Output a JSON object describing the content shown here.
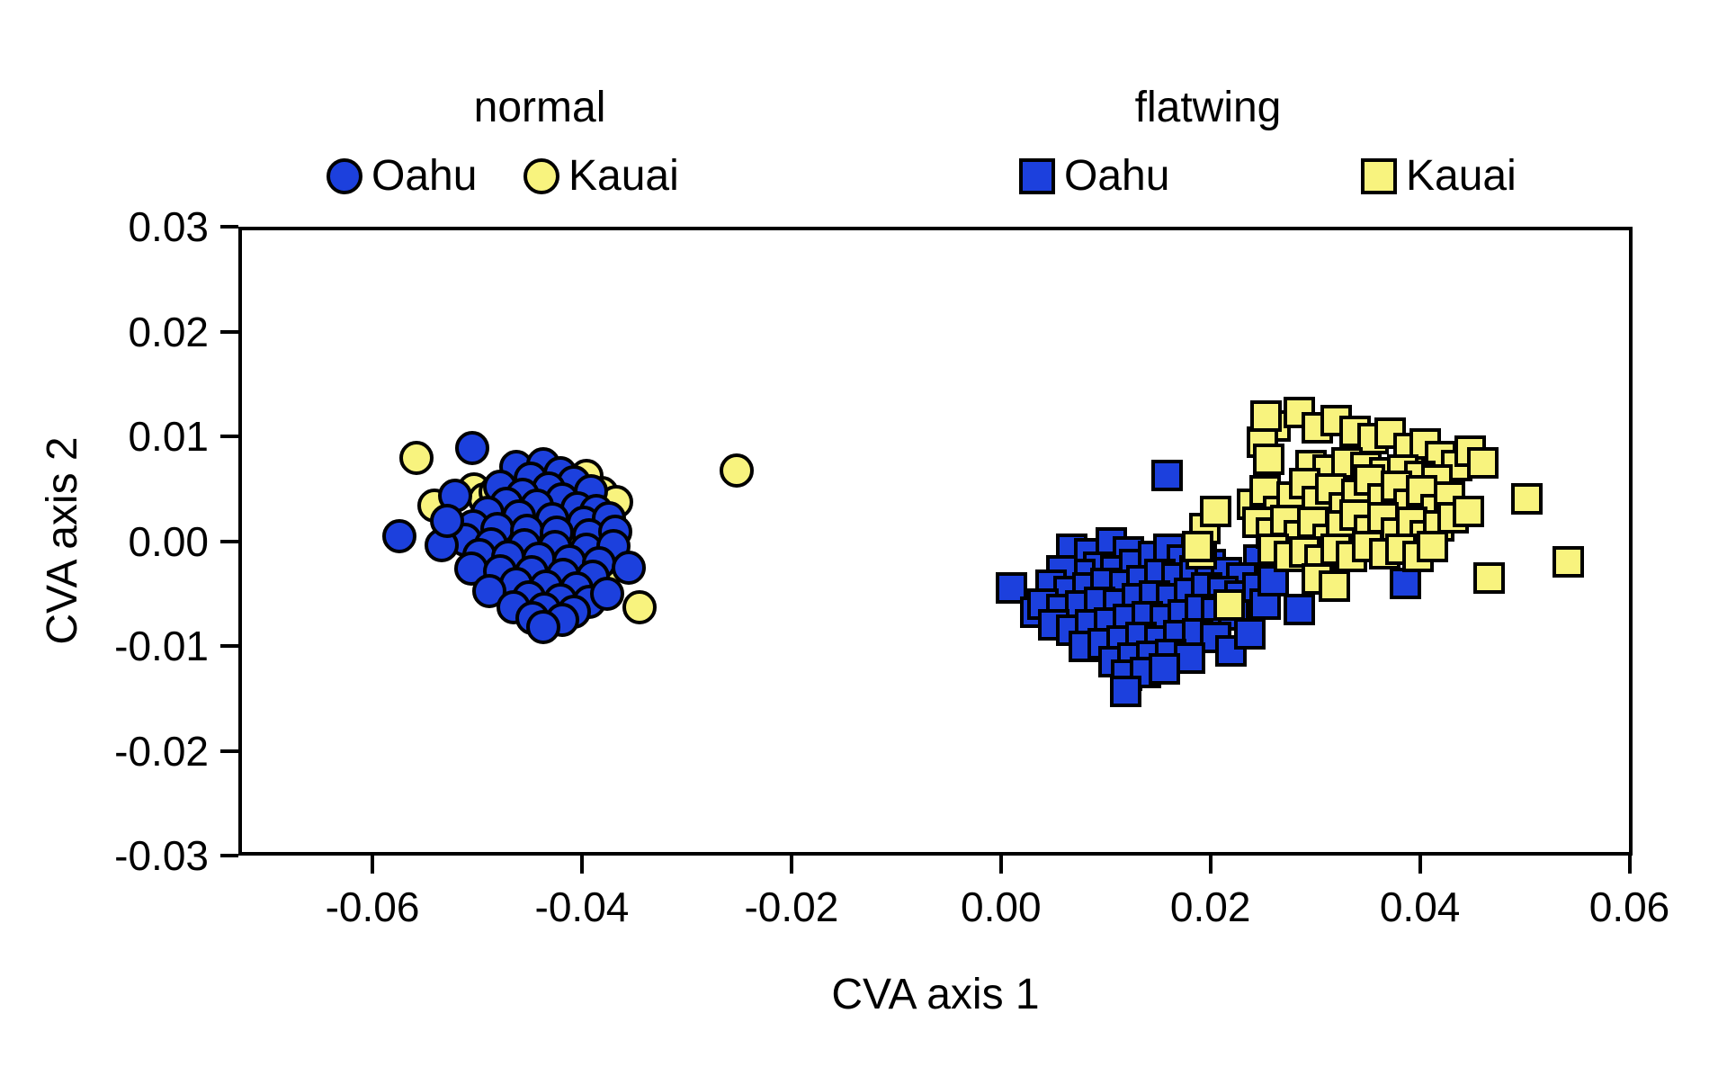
{
  "chart_data": {
    "type": "scatter",
    "title": "",
    "xlabel": "CVA axis 1",
    "ylabel": "CVA axis 2",
    "xlim": [
      -0.0728,
      0.0603
    ],
    "ylim": [
      -0.03,
      0.03
    ],
    "grid": false,
    "x_ticks": [
      -0.06,
      -0.04,
      -0.02,
      0.0,
      0.02,
      0.04,
      0.06
    ],
    "x_tick_labels": [
      "-0.06",
      "-0.04",
      "-0.02",
      "0.00",
      "0.02",
      "0.04",
      "0.06"
    ],
    "y_ticks": [
      0.03,
      0.02,
      0.01,
      0.0,
      -0.01,
      -0.02,
      -0.03
    ],
    "y_tick_labels": [
      "0.03",
      "0.02",
      "0.01",
      "0.00",
      "-0.01",
      "-0.02",
      "-0.03"
    ],
    "colors": {
      "oahu_blue": "#1c40dd",
      "kauai_yellow": "#f8f37e",
      "stroke": "#000000"
    },
    "legend": {
      "position": "top",
      "groups": [
        {
          "title": "normal",
          "marker": "circle",
          "items": [
            {
              "label": "Oahu",
              "color": "#1c40dd"
            },
            {
              "label": "Kauai",
              "color": "#f8f37e"
            }
          ]
        },
        {
          "title": "flatwing",
          "marker": "square",
          "items": [
            {
              "label": "Oahu",
              "color": "#1c40dd"
            },
            {
              "label": "Kauai",
              "color": "#f8f37e"
            }
          ]
        }
      ]
    },
    "series": [
      {
        "name": "normal Kauai",
        "marker": "circle",
        "color": "#f8f37e",
        "points": [
          [
            -0.0558,
            0.0079
          ],
          [
            -0.0541,
            0.0034
          ],
          [
            -0.0252,
            0.0067
          ],
          [
            -0.0345,
            -0.0063
          ],
          [
            -0.0503,
            0.0049
          ],
          [
            -0.0493,
            0.004
          ],
          [
            -0.0482,
            0.0047
          ],
          [
            -0.047,
            0.003
          ],
          [
            -0.0452,
            0.0052
          ],
          [
            -0.0435,
            0.0056
          ],
          [
            -0.0415,
            0.0059
          ],
          [
            -0.0396,
            0.0062
          ],
          [
            -0.0381,
            0.0046
          ],
          [
            -0.0367,
            0.0037
          ],
          [
            -0.0373,
            0.0012
          ],
          [
            -0.0409,
            0.0003
          ],
          [
            -0.0428,
            -0.0012
          ],
          [
            -0.0411,
            -0.0027
          ],
          [
            -0.0395,
            -0.0047
          ],
          [
            -0.0422,
            -0.0051
          ],
          [
            -0.0379,
            -0.0035
          ]
        ]
      },
      {
        "name": "normal Oahu",
        "marker": "circle",
        "color": "#1c40dd",
        "points": [
          [
            -0.0505,
            0.0089
          ],
          [
            -0.0463,
            0.0071
          ],
          [
            -0.0437,
            0.0073
          ],
          [
            -0.0421,
            0.0065
          ],
          [
            -0.0449,
            0.006
          ],
          [
            -0.0478,
            0.0052
          ],
          [
            -0.0408,
            0.0056
          ],
          [
            -0.0391,
            0.0048
          ],
          [
            -0.0432,
            0.005
          ],
          [
            -0.0457,
            0.0044
          ],
          [
            -0.0419,
            0.004
          ],
          [
            -0.0472,
            0.0036
          ],
          [
            -0.0443,
            0.0034
          ],
          [
            -0.0404,
            0.0031
          ],
          [
            -0.0386,
            0.0029
          ],
          [
            -0.049,
            0.0027
          ],
          [
            -0.046,
            0.0024
          ],
          [
            -0.0428,
            0.0021
          ],
          [
            -0.0398,
            0.0018
          ],
          [
            -0.0374,
            0.0022
          ],
          [
            -0.0504,
            0.0014
          ],
          [
            -0.0481,
            0.0012
          ],
          [
            -0.0452,
            0.001
          ],
          [
            -0.0424,
            0.0008
          ],
          [
            -0.0393,
            0.0006
          ],
          [
            -0.0368,
            0.0009
          ],
          [
            -0.0512,
            0.0001
          ],
          [
            -0.0487,
            -0.0003
          ],
          [
            -0.0455,
            -0.0004
          ],
          [
            -0.0426,
            -0.0006
          ],
          [
            -0.0396,
            -0.0008
          ],
          [
            -0.037,
            -0.0005
          ],
          [
            -0.0498,
            -0.0013
          ],
          [
            -0.047,
            -0.0015
          ],
          [
            -0.0441,
            -0.0017
          ],
          [
            -0.0412,
            -0.0019
          ],
          [
            -0.0384,
            -0.0021
          ],
          [
            -0.0355,
            -0.0025
          ],
          [
            -0.0506,
            -0.0026
          ],
          [
            -0.0478,
            -0.0029
          ],
          [
            -0.0448,
            -0.003
          ],
          [
            -0.0418,
            -0.0032
          ],
          [
            -0.039,
            -0.0034
          ],
          [
            -0.0463,
            -0.0041
          ],
          [
            -0.0434,
            -0.0043
          ],
          [
            -0.0405,
            -0.0045
          ],
          [
            -0.0488,
            -0.0048
          ],
          [
            -0.0451,
            -0.0054
          ],
          [
            -0.0421,
            -0.0056
          ],
          [
            -0.0393,
            -0.0058
          ],
          [
            -0.0376,
            -0.005
          ],
          [
            -0.0465,
            -0.0063
          ],
          [
            -0.0436,
            -0.0065
          ],
          [
            -0.0408,
            -0.0067
          ],
          [
            -0.0447,
            -0.0073
          ],
          [
            -0.0419,
            -0.0075
          ],
          [
            -0.0437,
            -0.0082
          ],
          [
            -0.0574,
            0.0005
          ],
          [
            -0.0534,
            -0.0004
          ],
          [
            -0.0521,
            0.0043
          ],
          [
            -0.0529,
            0.0019
          ]
        ]
      },
      {
        "name": "flatwing Oahu",
        "marker": "square",
        "color": "#1c40dd",
        "points": [
          [
            0.0159,
            0.0063
          ],
          [
            0.001,
            -0.0045
          ],
          [
            0.0033,
            -0.0068
          ],
          [
            0.0285,
            -0.0065
          ],
          [
            0.0386,
            -0.004
          ],
          [
            0.0246,
            -0.0018
          ],
          [
            0.0068,
            -0.0008
          ],
          [
            0.0085,
            -0.0012
          ],
          [
            0.0105,
            -0.0002
          ],
          [
            0.0122,
            -0.001
          ],
          [
            0.0093,
            -0.0025
          ],
          [
            0.0075,
            -0.0032
          ],
          [
            0.0058,
            -0.0028
          ],
          [
            0.011,
            -0.0028
          ],
          [
            0.0128,
            -0.0022
          ],
          [
            0.0146,
            -0.0015
          ],
          [
            0.016,
            -0.0008
          ],
          [
            0.0173,
            -0.0018
          ],
          [
            0.0048,
            -0.0042
          ],
          [
            0.0065,
            -0.0048
          ],
          [
            0.0083,
            -0.0045
          ],
          [
            0.01,
            -0.004
          ],
          [
            0.0118,
            -0.0042
          ],
          [
            0.0135,
            -0.0038
          ],
          [
            0.0152,
            -0.0032
          ],
          [
            0.0168,
            -0.0035
          ],
          [
            0.0185,
            -0.0028
          ],
          [
            0.02,
            -0.0022
          ],
          [
            0.0215,
            -0.003
          ],
          [
            0.023,
            -0.0035
          ],
          [
            0.004,
            -0.006
          ],
          [
            0.0058,
            -0.0065
          ],
          [
            0.0076,
            -0.0062
          ],
          [
            0.0094,
            -0.0058
          ],
          [
            0.0112,
            -0.006
          ],
          [
            0.013,
            -0.0055
          ],
          [
            0.0147,
            -0.0052
          ],
          [
            0.0163,
            -0.0055
          ],
          [
            0.018,
            -0.005
          ],
          [
            0.0196,
            -0.0045
          ],
          [
            0.0212,
            -0.0048
          ],
          [
            0.0228,
            -0.0052
          ],
          [
            0.0245,
            -0.0045
          ],
          [
            0.005,
            -0.008
          ],
          [
            0.0068,
            -0.0085
          ],
          [
            0.0086,
            -0.008
          ],
          [
            0.0104,
            -0.0078
          ],
          [
            0.0122,
            -0.0075
          ],
          [
            0.014,
            -0.0072
          ],
          [
            0.0157,
            -0.0075
          ],
          [
            0.0174,
            -0.007
          ],
          [
            0.019,
            -0.0065
          ],
          [
            0.0206,
            -0.0068
          ],
          [
            0.0222,
            -0.007
          ],
          [
            0.008,
            -0.01
          ],
          [
            0.0098,
            -0.0098
          ],
          [
            0.0116,
            -0.0095
          ],
          [
            0.0134,
            -0.0092
          ],
          [
            0.0152,
            -0.0095
          ],
          [
            0.017,
            -0.009
          ],
          [
            0.0188,
            -0.0088
          ],
          [
            0.0205,
            -0.0092
          ],
          [
            0.0108,
            -0.0115
          ],
          [
            0.0126,
            -0.0112
          ],
          [
            0.0144,
            -0.011
          ],
          [
            0.0162,
            -0.0108
          ],
          [
            0.018,
            -0.0112
          ],
          [
            0.012,
            -0.0128
          ],
          [
            0.0138,
            -0.0125
          ],
          [
            0.0156,
            -0.0122
          ],
          [
            0.0119,
            -0.0143
          ],
          [
            0.022,
            -0.0105
          ],
          [
            0.0238,
            -0.0088
          ],
          [
            0.0252,
            -0.006
          ],
          [
            0.026,
            -0.0038
          ]
        ]
      },
      {
        "name": "flatwing Kauai",
        "marker": "square",
        "color": "#f8f37e",
        "points": [
          [
            0.0262,
            0.011
          ],
          [
            0.0285,
            0.0123
          ],
          [
            0.0302,
            0.0108
          ],
          [
            0.032,
            0.0115
          ],
          [
            0.0338,
            0.0105
          ],
          [
            0.0355,
            0.0098
          ],
          [
            0.0372,
            0.0103
          ],
          [
            0.039,
            0.0088
          ],
          [
            0.0405,
            0.0093
          ],
          [
            0.042,
            0.0081
          ],
          [
            0.025,
            0.0094
          ],
          [
            0.0253,
            0.0119
          ],
          [
            0.0256,
            0.0078
          ],
          [
            0.0435,
            0.0072
          ],
          [
            0.0448,
            0.0086
          ],
          [
            0.046,
            0.0075
          ],
          [
            0.0296,
            0.0072
          ],
          [
            0.0312,
            0.0068
          ],
          [
            0.033,
            0.0075
          ],
          [
            0.0348,
            0.007
          ],
          [
            0.0366,
            0.0065
          ],
          [
            0.0384,
            0.0068
          ],
          [
            0.04,
            0.0062
          ],
          [
            0.0416,
            0.0058
          ],
          [
            0.024,
            0.0035
          ],
          [
            0.0252,
            0.0048
          ],
          [
            0.0265,
            0.0028
          ],
          [
            0.0278,
            0.0042
          ],
          [
            0.029,
            0.0055
          ],
          [
            0.0302,
            0.0038
          ],
          [
            0.0315,
            0.005
          ],
          [
            0.0328,
            0.0032
          ],
          [
            0.034,
            0.0045
          ],
          [
            0.0352,
            0.0058
          ],
          [
            0.0365,
            0.004
          ],
          [
            0.0378,
            0.0052
          ],
          [
            0.039,
            0.0035
          ],
          [
            0.0402,
            0.0048
          ],
          [
            0.0415,
            0.003
          ],
          [
            0.0428,
            0.0042
          ],
          [
            0.0502,
            0.004
          ],
          [
            0.0245,
            0.0018
          ],
          [
            0.0258,
            0.0008
          ],
          [
            0.0272,
            0.002
          ],
          [
            0.0285,
            0.0005
          ],
          [
            0.0298,
            0.0018
          ],
          [
            0.0312,
            0.0002
          ],
          [
            0.0325,
            0.0015
          ],
          [
            0.0338,
            0.0025
          ],
          [
            0.0352,
            0.001
          ],
          [
            0.0365,
            0.0022
          ],
          [
            0.0378,
            0.0008
          ],
          [
            0.0392,
            0.0018
          ],
          [
            0.0405,
            0.0005
          ],
          [
            0.0418,
            0.0015
          ],
          [
            0.0432,
            0.0022
          ],
          [
            0.0446,
            0.0028
          ],
          [
            0.026,
            -0.0008
          ],
          [
            0.0275,
            -0.0015
          ],
          [
            0.029,
            -0.001
          ],
          [
            0.0305,
            -0.0018
          ],
          [
            0.032,
            -0.0008
          ],
          [
            0.0335,
            -0.0015
          ],
          [
            0.035,
            -0.0005
          ],
          [
            0.0366,
            -0.0012
          ],
          [
            0.0382,
            -0.0008
          ],
          [
            0.0398,
            -0.0015
          ],
          [
            0.0412,
            -0.0005
          ],
          [
            0.0191,
            -0.0012
          ],
          [
            0.0218,
            -0.0061
          ],
          [
            0.0302,
            -0.0036
          ],
          [
            0.0318,
            -0.0043
          ],
          [
            0.0466,
            -0.0035
          ],
          [
            0.0542,
            -0.002
          ],
          [
            0.0195,
            0.0012
          ],
          [
            0.0205,
            0.0028
          ],
          [
            0.0188,
            -0.0005
          ]
        ]
      }
    ]
  }
}
